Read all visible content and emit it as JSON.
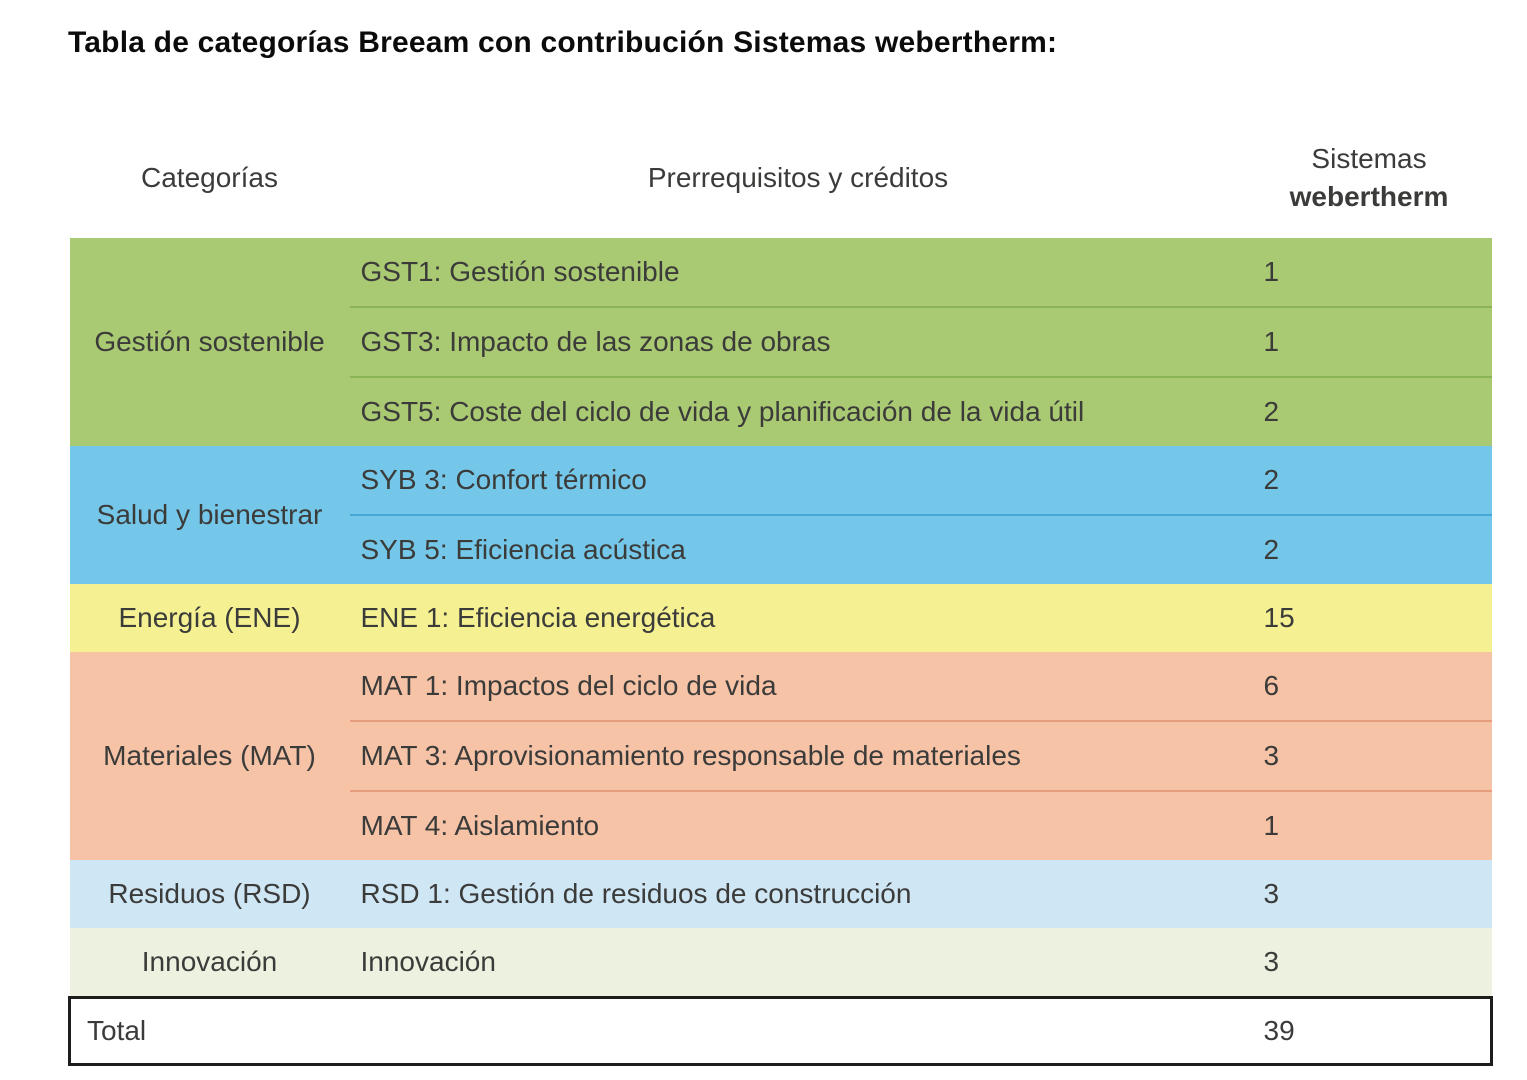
{
  "title": "Tabla de categorías Breeam con contribución Sistemas webertherm:",
  "table": {
    "headers": {
      "category": "Categorías",
      "credits": "Prerrequisitos y créditos",
      "value_line1": "Sistemas",
      "value_line2": "webertherm"
    },
    "groups": [
      {
        "category": "Gestión sostenible",
        "category_lines": [
          "Gestión",
          "sostenible"
        ],
        "color": "#a9c973",
        "divider_color": "#8bb554",
        "rows": [
          {
            "credit": "GST1: Gestión sostenible",
            "value": "1"
          },
          {
            "credit": "GST3: Impacto de las zonas de obras",
            "value": "1"
          },
          {
            "credit": "GST5: Coste del ciclo de vida y planificación de la vida útil",
            "value": "2"
          }
        ]
      },
      {
        "category": "Salud y bienestrar",
        "category_lines": [
          "Salud y",
          "bienestrar"
        ],
        "color": "#74c7e8",
        "divider_color": "#45a8d6",
        "rows": [
          {
            "credit": "SYB 3: Confort térmico",
            "value": "2"
          },
          {
            "credit": "SYB 5: Eficiencia acústica",
            "value": "2"
          }
        ]
      },
      {
        "category": "Energía (ENE)",
        "category_lines": [
          "Energía (ENE)"
        ],
        "color": "#f5f193",
        "rows": [
          {
            "credit": "ENE 1: Eficiencia energética",
            "value": "15"
          }
        ]
      },
      {
        "category": "Materiales (MAT)",
        "category_lines": [
          "Materiales",
          "(MAT)"
        ],
        "color": "#f6c3a7",
        "divider_color": "#e59d7d",
        "rows": [
          {
            "credit": "MAT 1: Impactos del ciclo de vida",
            "value": "6"
          },
          {
            "credit": "MAT 3: Aprovisionamiento responsable de materiales",
            "value": "3"
          },
          {
            "credit": "MAT 4: Aislamiento",
            "value": "1"
          }
        ]
      },
      {
        "category": "Residuos (RSD)",
        "category_lines": [
          "Residuos (RSD)"
        ],
        "color": "#cfe6f5",
        "rows": [
          {
            "credit": "RSD 1: Gestión de residuos de construcción",
            "value": "3"
          }
        ]
      },
      {
        "category": "Innovación",
        "category_lines": [
          "Innovación"
        ],
        "color": "#edf2e0",
        "rows": [
          {
            "credit": "Innovación",
            "value": "3"
          }
        ]
      }
    ],
    "total": {
      "label": "Total",
      "value": "39"
    },
    "text_color": "#3b3b3a",
    "border_color": "#1d1d1b"
  }
}
